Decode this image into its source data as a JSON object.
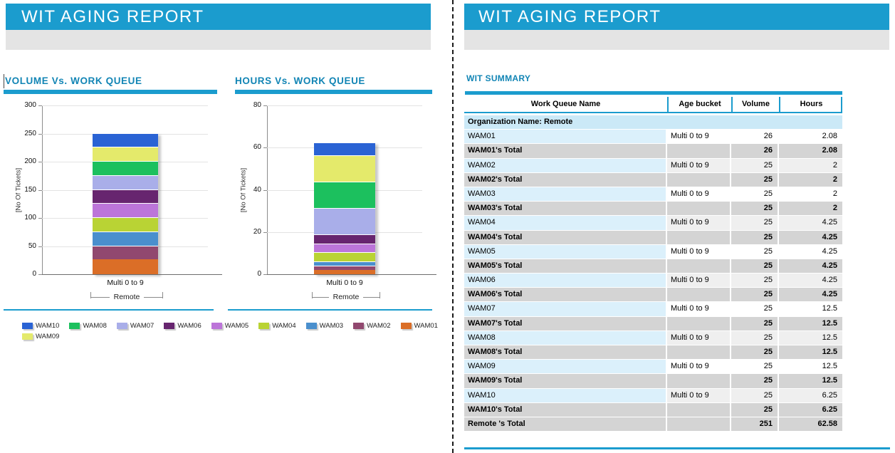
{
  "colors": {
    "accent_blue": "#1B9CCE",
    "title_blue": "#1285B5",
    "header_gray": "#E4E4E4",
    "org_row_bg": "#CBE9F7",
    "first_col_bg": "#DBF0FB",
    "alt_row_bg": "#EFEFEF",
    "total_row_bg": "#D4D4D4"
  },
  "series_colors": {
    "WAM01": "#DB6E27",
    "WAM02": "#91486F",
    "WAM03": "#4A8FCD",
    "WAM04": "#B9D334",
    "WAM05": "#BC75D9",
    "WAM06": "#67256F",
    "WAM07": "#A9AEE9",
    "WAM08": "#1CC05E",
    "WAM09": "#E4EA6B",
    "WAM10": "#2A63D4"
  },
  "left_panel": {
    "header_title": "WIT AGING REPORT",
    "legend_rows": [
      [
        "WAM10",
        "WAM08",
        "WAM07",
        "WAM06",
        "WAM05",
        "WAM04",
        "WAM03",
        "WAM02",
        "WAM01"
      ],
      [
        "WAM09"
      ]
    ]
  },
  "right_panel": {
    "header_title": "WIT AGING REPORT",
    "section_title": "WIT SUMMARY",
    "table": {
      "columns": [
        "Work Queue Name",
        "Age bucket",
        "Volume",
        "Hours"
      ],
      "group_header": "Organization Name: Remote",
      "rows": [
        {
          "type": "data",
          "name": "WAM01",
          "age": "Multi 0 to 9",
          "volume": "26",
          "hours": "2.08",
          "shaded": false
        },
        {
          "type": "total",
          "name": "WAM01's Total",
          "age": "",
          "volume": "26",
          "hours": "2.08"
        },
        {
          "type": "data",
          "name": "WAM02",
          "age": "Multi 0 to 9",
          "volume": "25",
          "hours": "2",
          "shaded": true
        },
        {
          "type": "total",
          "name": "WAM02's Total",
          "age": "",
          "volume": "25",
          "hours": "2"
        },
        {
          "type": "data",
          "name": "WAM03",
          "age": "Multi 0 to 9",
          "volume": "25",
          "hours": "2",
          "shaded": false
        },
        {
          "type": "total",
          "name": "WAM03's Total",
          "age": "",
          "volume": "25",
          "hours": "2"
        },
        {
          "type": "data",
          "name": "WAM04",
          "age": "Multi 0 to 9",
          "volume": "25",
          "hours": "4.25",
          "shaded": true
        },
        {
          "type": "total",
          "name": "WAM04's Total",
          "age": "",
          "volume": "25",
          "hours": "4.25"
        },
        {
          "type": "data",
          "name": "WAM05",
          "age": "Multi 0 to 9",
          "volume": "25",
          "hours": "4.25",
          "shaded": false
        },
        {
          "type": "total",
          "name": "WAM05's Total",
          "age": "",
          "volume": "25",
          "hours": "4.25"
        },
        {
          "type": "data",
          "name": "WAM06",
          "age": "Multi 0 to 9",
          "volume": "25",
          "hours": "4.25",
          "shaded": true
        },
        {
          "type": "total",
          "name": "WAM06's Total",
          "age": "",
          "volume": "25",
          "hours": "4.25"
        },
        {
          "type": "data",
          "name": "WAM07",
          "age": "Multi 0 to 9",
          "volume": "25",
          "hours": "12.5",
          "shaded": false
        },
        {
          "type": "total",
          "name": "WAM07's Total",
          "age": "",
          "volume": "25",
          "hours": "12.5"
        },
        {
          "type": "data",
          "name": "WAM08",
          "age": "Multi 0 to 9",
          "volume": "25",
          "hours": "12.5",
          "shaded": true
        },
        {
          "type": "total",
          "name": "WAM08's Total",
          "age": "",
          "volume": "25",
          "hours": "12.5"
        },
        {
          "type": "data",
          "name": "WAM09",
          "age": "Multi 0 to 9",
          "volume": "25",
          "hours": "12.5",
          "shaded": false
        },
        {
          "type": "total",
          "name": "WAM09's Total",
          "age": "",
          "volume": "25",
          "hours": "12.5"
        },
        {
          "type": "data",
          "name": "WAM10",
          "age": "Multi 0 to 9",
          "volume": "25",
          "hours": "6.25",
          "shaded": true
        },
        {
          "type": "total",
          "name": "WAM10's Total",
          "age": "",
          "volume": "25",
          "hours": "6.25"
        },
        {
          "type": "grand",
          "name": "Remote 's Total",
          "age": "",
          "volume": "251",
          "hours": "62.58"
        }
      ]
    }
  },
  "chart_data": [
    {
      "type": "bar",
      "stacked": true,
      "title": "VOLUME Vs. WORK QUEUE",
      "ylabel": "[No Of Tickets]",
      "xlabel": "",
      "ylim": [
        0,
        300
      ],
      "yticks": [
        0,
        50,
        100,
        150,
        200,
        250,
        300
      ],
      "categories": [
        "Multi 0 to 9"
      ],
      "group_label": "Remote",
      "grid": true,
      "legend_position": "bottom",
      "series": [
        {
          "name": "WAM01",
          "values": [
            26
          ]
        },
        {
          "name": "WAM02",
          "values": [
            25
          ]
        },
        {
          "name": "WAM03",
          "values": [
            25
          ]
        },
        {
          "name": "WAM04",
          "values": [
            25
          ]
        },
        {
          "name": "WAM05",
          "values": [
            25
          ]
        },
        {
          "name": "WAM06",
          "values": [
            25
          ]
        },
        {
          "name": "WAM07",
          "values": [
            25
          ]
        },
        {
          "name": "WAM08",
          "values": [
            25
          ]
        },
        {
          "name": "WAM09",
          "values": [
            25
          ]
        },
        {
          "name": "WAM10",
          "values": [
            25
          ]
        }
      ],
      "stack_total": 251
    },
    {
      "type": "bar",
      "stacked": true,
      "title": "HOURS Vs. WORK QUEUE",
      "ylabel": "[No Of Tickets]",
      "xlabel": "",
      "ylim": [
        0,
        80
      ],
      "yticks": [
        0,
        20,
        40,
        60,
        80
      ],
      "categories": [
        "Multi 0 to 9"
      ],
      "group_label": "Remote",
      "grid": true,
      "legend_position": "bottom",
      "series": [
        {
          "name": "WAM01",
          "values": [
            2.08
          ]
        },
        {
          "name": "WAM02",
          "values": [
            2
          ]
        },
        {
          "name": "WAM03",
          "values": [
            2
          ]
        },
        {
          "name": "WAM04",
          "values": [
            4.25
          ]
        },
        {
          "name": "WAM05",
          "values": [
            4.25
          ]
        },
        {
          "name": "WAM06",
          "values": [
            4.25
          ]
        },
        {
          "name": "WAM07",
          "values": [
            12.5
          ]
        },
        {
          "name": "WAM08",
          "values": [
            12.5
          ]
        },
        {
          "name": "WAM09",
          "values": [
            12.5
          ]
        },
        {
          "name": "WAM10",
          "values": [
            6.25
          ]
        }
      ],
      "stack_total": 62.58
    }
  ]
}
